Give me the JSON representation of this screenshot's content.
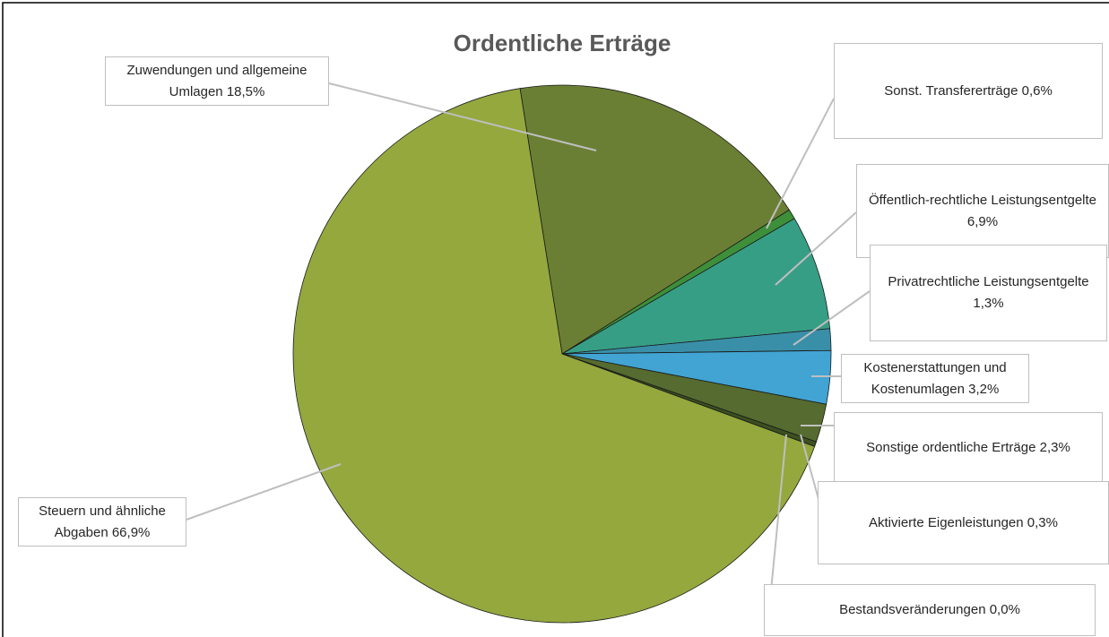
{
  "chart_data": {
    "type": "pie",
    "title": "Ordentliche Erträge",
    "categories": [
      "Zuwendungen und allgemeine Umlagen",
      "Sonst. Transfererträge",
      "Öffentlich-rechtliche Leistungsentgelte",
      "Privatrechtliche Leistungsentgelte",
      "Kostenerstattungen und Kostenumlagen",
      "Sonstige ordentliche Erträge",
      "Aktivierte Eigenleistungen",
      "Bestandsveränderungen",
      "Steuern und ähnliche Abgaben"
    ],
    "values": [
      18.5,
      0.6,
      6.9,
      1.3,
      3.2,
      2.3,
      0.3,
      0.0,
      66.9
    ],
    "value_labels": [
      "18,5%",
      "0,6%",
      "6,9%",
      "1,3%",
      "3,2%",
      "2,3%",
      "0,3%",
      "0,0%",
      "66,9%"
    ],
    "colors": [
      "#6a7f34",
      "#3d8f3a",
      "#379e86",
      "#3a8fa8",
      "#41a4d3",
      "#556b2f",
      "#3c5020",
      "#2f4f2f",
      "#94a83e"
    ]
  }
}
